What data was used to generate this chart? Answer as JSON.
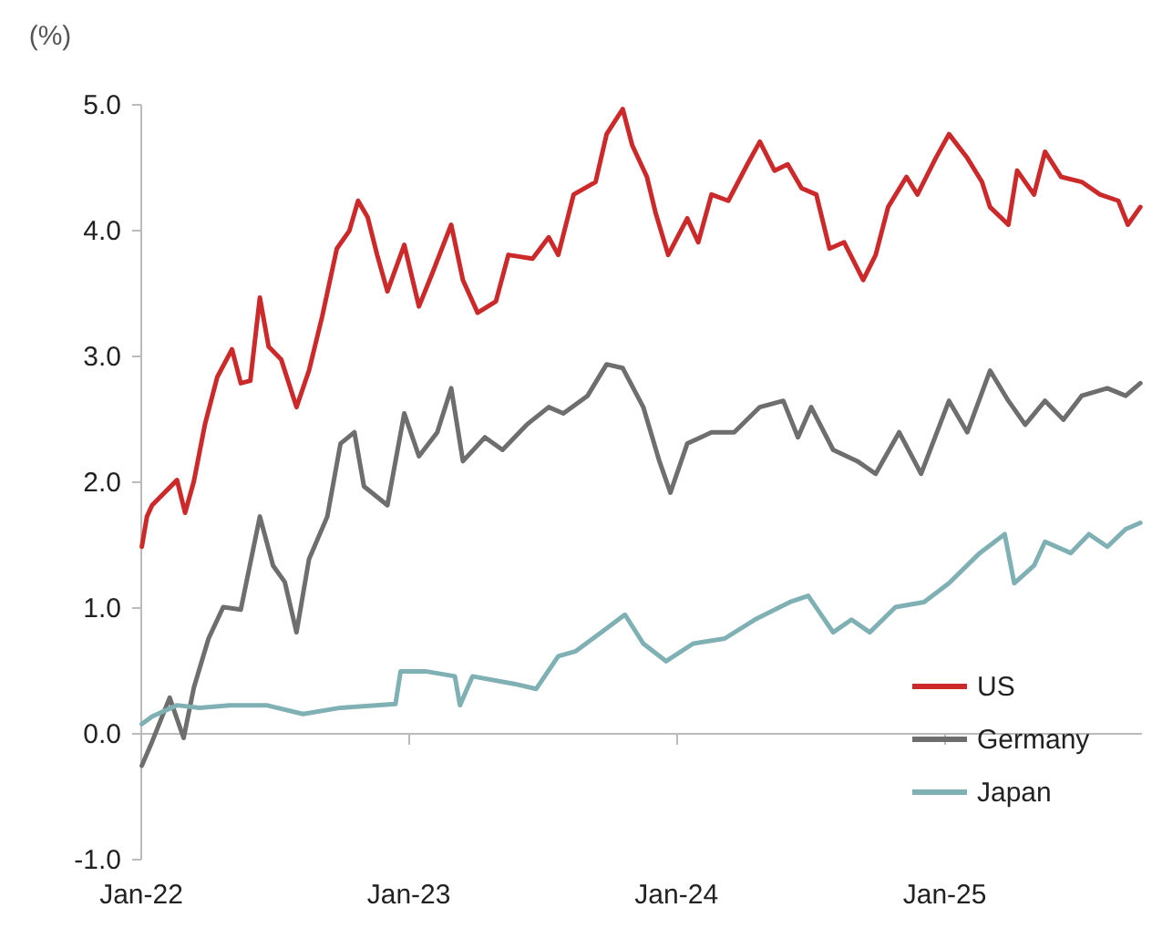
{
  "chart_data": {
    "type": "line",
    "ylabel": "(%)",
    "xlim": [
      "2022-01-01",
      "2025-09-27"
    ],
    "xticks": [
      {
        "value": "2022-01-01",
        "label": "Jan-22"
      },
      {
        "value": "2023-01-01",
        "label": "Jan-23"
      },
      {
        "value": "2024-01-01",
        "label": "Jan-24"
      },
      {
        "value": "2025-01-01",
        "label": "Jan-25"
      }
    ],
    "ylim": [
      -1,
      5
    ],
    "yticks": [
      {
        "value": -1,
        "label": "-1.0"
      },
      {
        "value": 0,
        "label": "0.0"
      },
      {
        "value": 1,
        "label": "1.0"
      },
      {
        "value": 2,
        "label": "2.0"
      },
      {
        "value": 3,
        "label": "3.0"
      },
      {
        "value": 4,
        "label": "4.0"
      },
      {
        "value": 5,
        "label": "5.0"
      }
    ],
    "legend": "bottom right",
    "series": [
      {
        "name": "US",
        "color": "#cc2a2a",
        "x": [
          "2022-01-03",
          "2022-01-10",
          "2022-01-17",
          "2022-02-20",
          "2022-03-03",
          "2022-03-15",
          "2022-03-30",
          "2022-04-16",
          "2022-05-06",
          "2022-05-18",
          "2022-05-31",
          "2022-06-13",
          "2022-06-25",
          "2022-07-12",
          "2022-08-02",
          "2022-08-19",
          "2022-09-06",
          "2022-09-26",
          "2022-10-13",
          "2022-10-25",
          "2022-11-07",
          "2022-11-20",
          "2022-12-04",
          "2022-12-27",
          "2023-01-16",
          "2023-02-03",
          "2023-03-01",
          "2023-03-17",
          "2023-04-06",
          "2023-05-01",
          "2023-05-18",
          "2023-06-20",
          "2023-07-12",
          "2023-07-25",
          "2023-08-15",
          "2023-09-14",
          "2023-09-29",
          "2023-10-21",
          "2023-11-03",
          "2023-11-23",
          "2023-12-05",
          "2023-12-22",
          "2024-01-17",
          "2024-02-01",
          "2024-02-19",
          "2024-03-13",
          "2024-04-08",
          "2024-04-25",
          "2024-05-15",
          "2024-06-02",
          "2024-06-21",
          "2024-07-11",
          "2024-07-29",
          "2024-08-18",
          "2024-09-13",
          "2024-09-30",
          "2024-10-17",
          "2024-11-11",
          "2024-11-26",
          "2024-12-21",
          "2025-01-08",
          "2025-02-02",
          "2025-02-22",
          "2025-03-05",
          "2025-03-30",
          "2025-04-11",
          "2025-05-04",
          "2025-05-19",
          "2025-06-10",
          "2025-07-08",
          "2025-08-02",
          "2025-08-27",
          "2025-09-09",
          "2025-09-26"
        ],
        "values": [
          1.48,
          1.72,
          1.81,
          2.01,
          1.75,
          2.0,
          2.45,
          2.83,
          3.05,
          2.78,
          2.8,
          3.46,
          3.07,
          2.97,
          2.59,
          2.88,
          3.31,
          3.85,
          3.99,
          4.23,
          4.1,
          3.8,
          3.51,
          3.88,
          3.39,
          3.65,
          4.04,
          3.6,
          3.34,
          3.43,
          3.8,
          3.77,
          3.94,
          3.8,
          4.28,
          4.38,
          4.76,
          4.96,
          4.67,
          4.42,
          4.13,
          3.8,
          4.09,
          3.9,
          4.28,
          4.23,
          4.52,
          4.7,
          4.47,
          4.52,
          4.33,
          4.28,
          3.85,
          3.9,
          3.6,
          3.8,
          4.18,
          4.42,
          4.28,
          4.57,
          4.76,
          4.57,
          4.38,
          4.18,
          4.04,
          4.47,
          4.28,
          4.62,
          4.42,
          4.38,
          4.28,
          4.23,
          4.04,
          4.18
        ]
      },
      {
        "name": "Germany",
        "color": "#6e6e6e",
        "x": [
          "2022-01-03",
          "2022-01-17",
          "2022-02-10",
          "2022-03-01",
          "2022-03-15",
          "2022-04-04",
          "2022-04-24",
          "2022-05-18",
          "2022-06-13",
          "2022-07-01",
          "2022-07-17",
          "2022-08-02",
          "2022-08-19",
          "2022-09-13",
          "2022-10-01",
          "2022-10-20",
          "2022-11-02",
          "2022-12-04",
          "2022-12-27",
          "2023-01-16",
          "2023-02-10",
          "2023-03-01",
          "2023-03-17",
          "2023-04-16",
          "2023-05-10",
          "2023-06-12",
          "2023-07-12",
          "2023-08-01",
          "2023-09-03",
          "2023-09-29",
          "2023-10-21",
          "2023-11-18",
          "2023-12-10",
          "2023-12-25",
          "2024-01-17",
          "2024-02-19",
          "2024-03-21",
          "2024-04-25",
          "2024-05-27",
          "2024-06-16",
          "2024-07-04",
          "2024-08-03",
          "2024-09-05",
          "2024-09-30",
          "2024-11-01",
          "2024-12-01",
          "2025-01-08",
          "2025-02-02",
          "2025-03-05",
          "2025-03-30",
          "2025-04-22",
          "2025-05-19",
          "2025-06-13",
          "2025-07-08",
          "2025-08-12",
          "2025-09-06",
          "2025-09-26"
        ],
        "values": [
          -0.26,
          -0.07,
          0.28,
          -0.04,
          0.36,
          0.75,
          1.0,
          0.98,
          1.72,
          1.33,
          1.2,
          0.8,
          1.38,
          1.72,
          2.3,
          2.39,
          1.96,
          1.81,
          2.54,
          2.2,
          2.39,
          2.74,
          2.16,
          2.35,
          2.25,
          2.45,
          2.59,
          2.54,
          2.68,
          2.93,
          2.9,
          2.59,
          2.16,
          1.91,
          2.3,
          2.39,
          2.39,
          2.59,
          2.64,
          2.35,
          2.59,
          2.25,
          2.16,
          2.06,
          2.39,
          2.06,
          2.64,
          2.39,
          2.88,
          2.64,
          2.45,
          2.64,
          2.49,
          2.68,
          2.74,
          2.68,
          2.78
        ]
      },
      {
        "name": "Japan",
        "color": "#7fb0b4",
        "x": [
          "2022-01-03",
          "2022-01-17",
          "2022-02-20",
          "2022-03-23",
          "2022-05-03",
          "2022-06-22",
          "2022-08-11",
          "2022-10-01",
          "2022-12-15",
          "2022-12-22",
          "2023-01-25",
          "2023-03-06",
          "2023-03-13",
          "2023-03-30",
          "2023-05-26",
          "2023-06-25",
          "2023-07-25",
          "2023-08-18",
          "2023-09-22",
          "2023-10-24",
          "2023-11-18",
          "2023-12-19",
          "2024-01-25",
          "2024-03-08",
          "2024-04-18",
          "2024-06-05",
          "2024-06-30",
          "2024-08-03",
          "2024-08-28",
          "2024-09-22",
          "2024-10-27",
          "2024-12-05",
          "2025-01-08",
          "2025-02-19",
          "2025-03-25",
          "2025-04-07",
          "2025-05-04",
          "2025-05-19",
          "2025-06-23",
          "2025-07-18",
          "2025-08-12",
          "2025-09-06",
          "2025-09-26"
        ],
        "values": [
          0.07,
          0.13,
          0.22,
          0.2,
          0.22,
          0.22,
          0.15,
          0.2,
          0.23,
          0.49,
          0.49,
          0.45,
          0.22,
          0.45,
          0.39,
          0.35,
          0.61,
          0.65,
          0.8,
          0.94,
          0.71,
          0.57,
          0.71,
          0.75,
          0.9,
          1.04,
          1.09,
          0.8,
          0.9,
          0.8,
          1.0,
          1.04,
          1.19,
          1.43,
          1.58,
          1.19,
          1.33,
          1.52,
          1.43,
          1.58,
          1.48,
          1.62,
          1.67
        ]
      }
    ]
  }
}
